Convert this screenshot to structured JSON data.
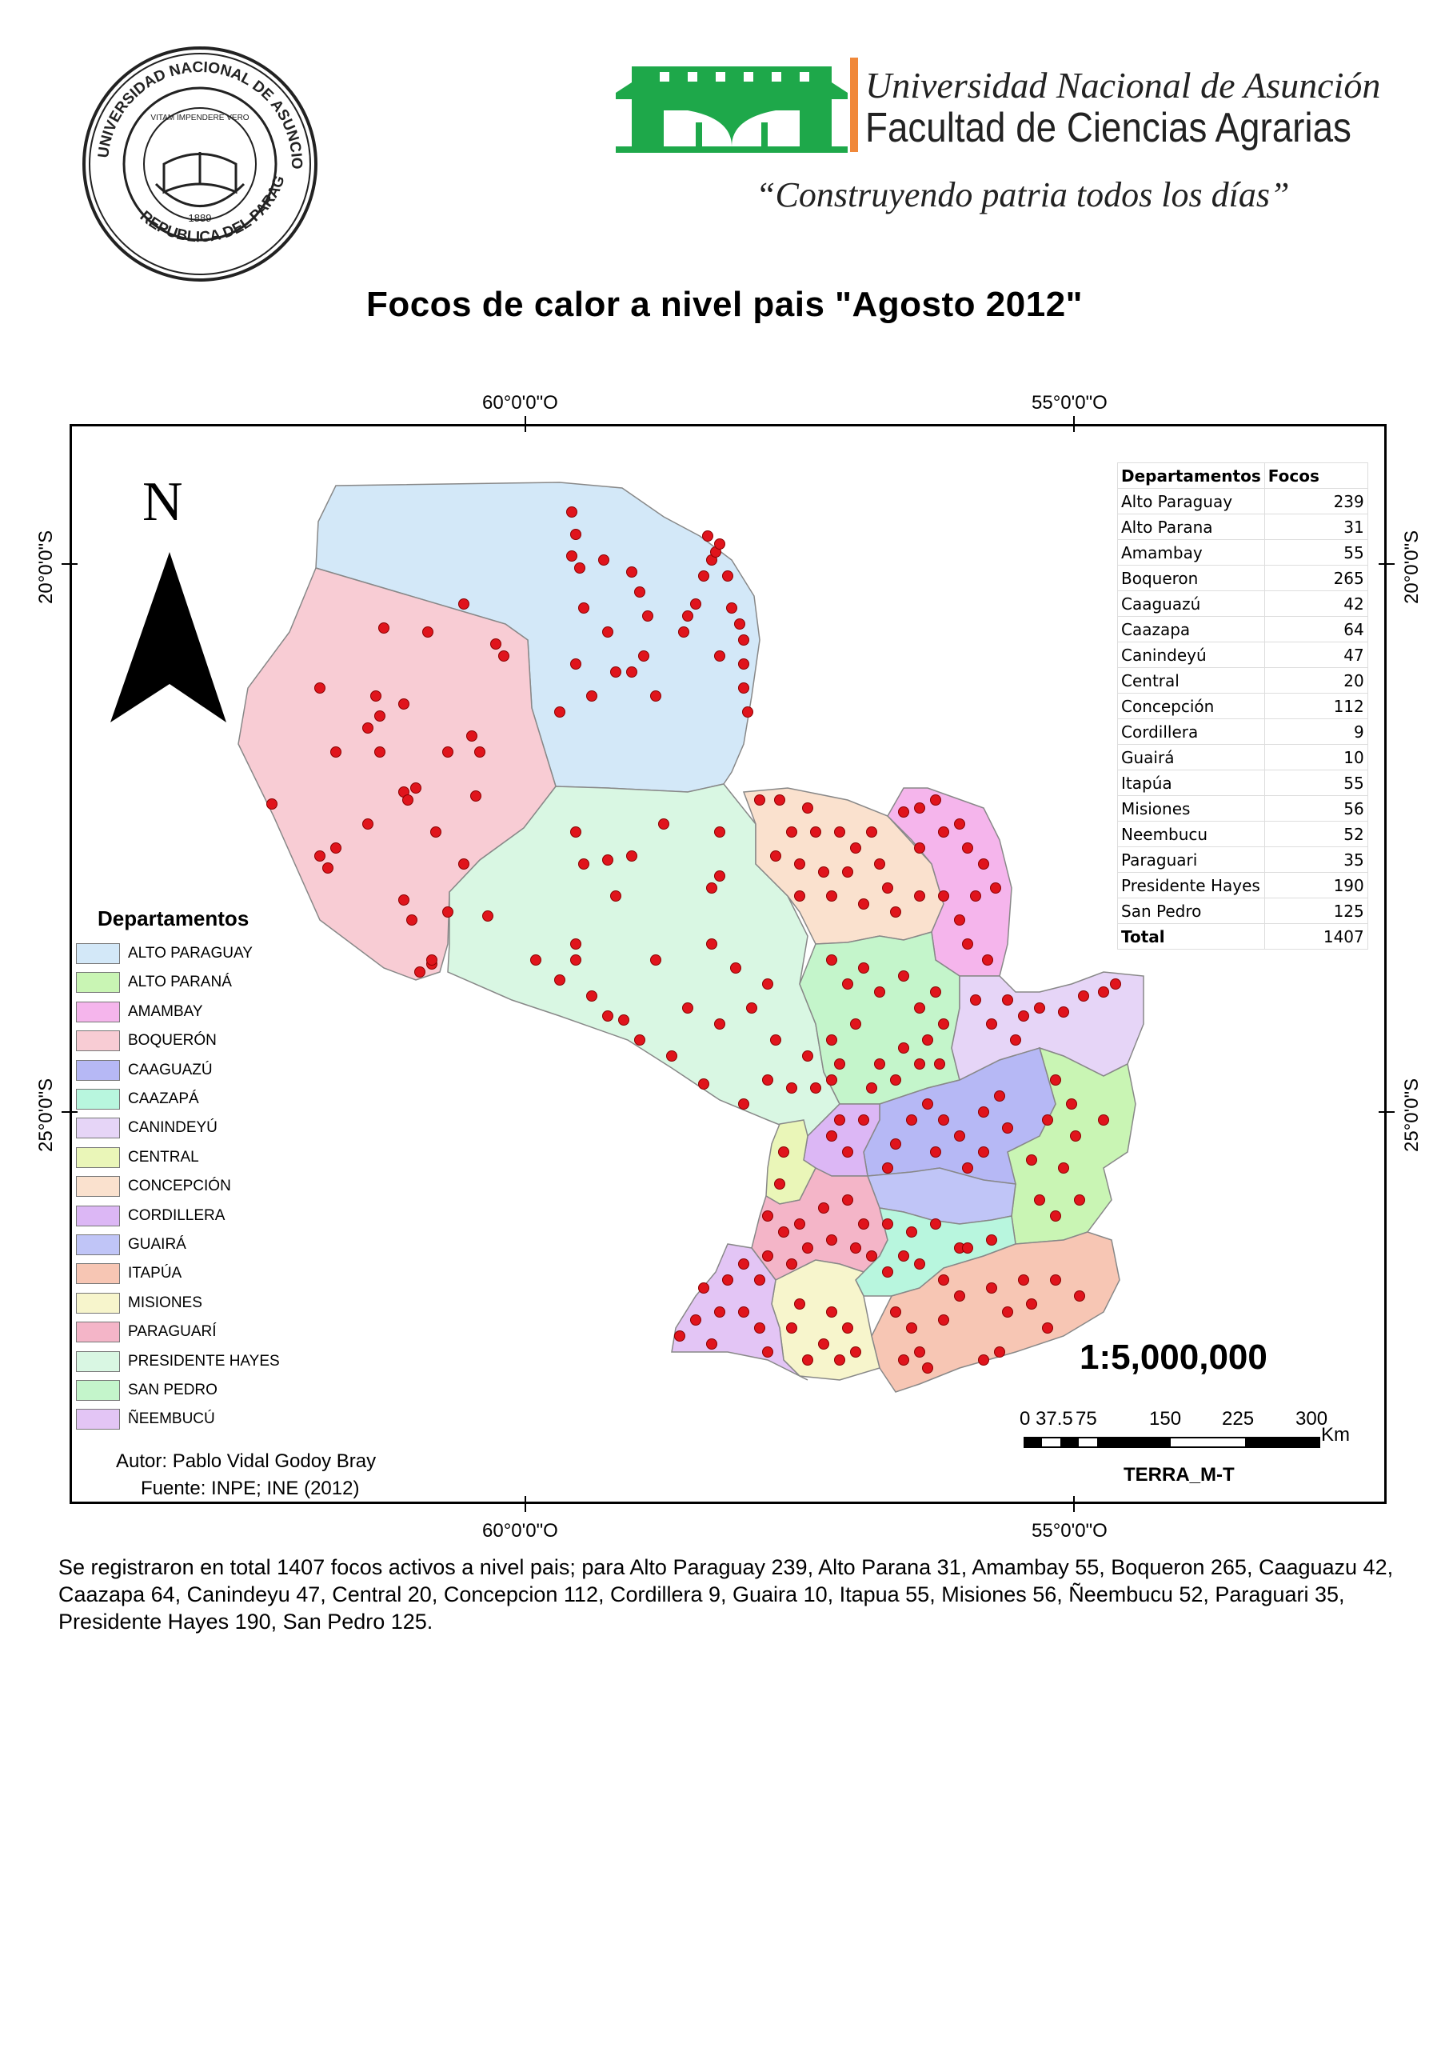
{
  "header": {
    "seal_text": "UNIVERSIDAD NACIONAL DE ASUNCION · REPUBLICA DEL PARAGUAY",
    "seal_motto": "VITAM IMPENDERE VERO",
    "seal_year": "1889",
    "university": "Universidad Nacional de Asunción",
    "faculty": "Facultad de Ciencias Agrarias",
    "slogan": "“Construyendo patria todos los días”"
  },
  "title": "Focos de calor a nivel pais \"Agosto 2012\"",
  "coordinates": {
    "lon_left": "60°0'0\"O",
    "lon_right": "55°0'0\"O",
    "lat_top": "20°0'0\"S",
    "lat_bottom": "25°0'0\"S"
  },
  "north_label": "N",
  "legend": {
    "title": "Departamentos",
    "items": [
      {
        "label": "ALTO PARAGUAY",
        "color": "#d3e8f8"
      },
      {
        "label": "ALTO PARANÁ",
        "color": "#c9f5b4"
      },
      {
        "label": "AMAMBAY",
        "color": "#f5b5ec"
      },
      {
        "label": "BOQUERÓN",
        "color": "#f8ccd4"
      },
      {
        "label": "CAAGUAZÚ",
        "color": "#b6b8f5"
      },
      {
        "label": "CAAZAPÁ",
        "color": "#b8f6de"
      },
      {
        "label": "CANINDEYÚ",
        "color": "#e6d5f7"
      },
      {
        "label": "CENTRAL",
        "color": "#eaf6b8"
      },
      {
        "label": "CONCEPCIÓN",
        "color": "#fae1ce"
      },
      {
        "label": "CORDILLERA",
        "color": "#dcb7f5"
      },
      {
        "label": "GUAIRÁ",
        "color": "#c0c5f7"
      },
      {
        "label": "ITAPÚA",
        "color": "#f7c6b4"
      },
      {
        "label": "MISIONES",
        "color": "#f7f5cc"
      },
      {
        "label": "PARAGUARÍ",
        "color": "#f4b5c8"
      },
      {
        "label": "PRESIDENTE HAYES",
        "color": "#d9f7e3"
      },
      {
        "label": "SAN PEDRO",
        "color": "#c4f5cb"
      },
      {
        "label": "ÑEEMBUCÚ",
        "color": "#e3c5f5"
      }
    ]
  },
  "table": {
    "headers": [
      "Departamentos",
      "Focos"
    ],
    "rows": [
      [
        "Alto Paraguay",
        "239"
      ],
      [
        "Alto Parana",
        "31"
      ],
      [
        "Amambay",
        "55"
      ],
      [
        "Boqueron",
        "265"
      ],
      [
        "Caaguazú",
        "42"
      ],
      [
        "Caazapa",
        "64"
      ],
      [
        "Canindeyú",
        "47"
      ],
      [
        "Central",
        "20"
      ],
      [
        "Concepción",
        "112"
      ],
      [
        "Cordillera",
        "9"
      ],
      [
        "Guairá",
        "10"
      ],
      [
        "Itapúa",
        "55"
      ],
      [
        "Misiones",
        "56"
      ],
      [
        "Neembucu",
        "52"
      ],
      [
        "Paraguari",
        "35"
      ],
      [
        "Presidente Hayes",
        "190"
      ],
      [
        "San Pedro",
        "125"
      ]
    ],
    "total_label": "Total",
    "total_value": "1407"
  },
  "scale": {
    "ratio": "1:5,000,000",
    "ticks": [
      "0",
      "37.5",
      "75",
      "150",
      "225",
      "300"
    ],
    "unit": "Km"
  },
  "credit": "TERRA_M-T",
  "author": "Autor: Pablo Vidal Godoy Bray",
  "source": "Fuente: INPE; INE (2012)",
  "caption": "Se registraron en total 1407 focos activos a nivel pais; para Alto Paraguay 239, Alto Parana 31, Amambay 55, Boqueron 265, Caaguazu 42, Caazapa 64, Canindeyu 47, Central 20, Concepcion 112, Cordillera 9, Guaira 10, Itapua 55, Misiones 56, Ñeembucu 52, Paraguari 35, Presidente Hayes 190, San Pedro 125.",
  "colors": {
    "fire_point": "#e0141c",
    "logo_green": "#1ea84a",
    "logo_orange": "#f0883a"
  }
}
